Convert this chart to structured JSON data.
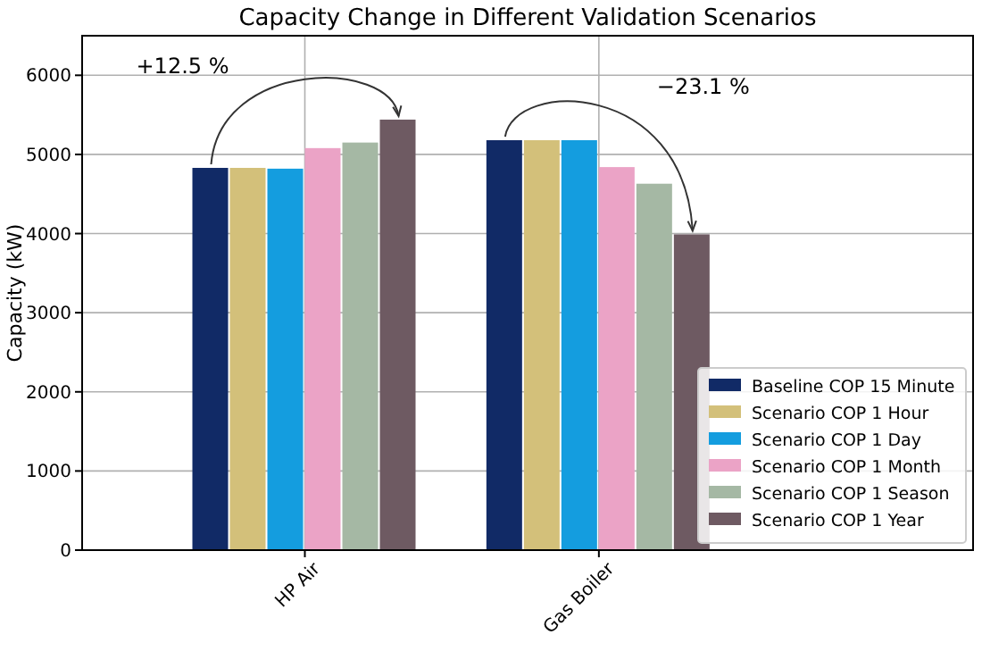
{
  "chart_data": {
    "type": "bar",
    "title": "Capacity Change in Different Validation Scenarios",
    "ylabel": "Capacity (kW)",
    "categories": [
      "HP Air",
      "Gas Boiler"
    ],
    "series": [
      {
        "name": "Baseline COP 15 Minute",
        "color": "#112a66",
        "values": [
          4830,
          5180
        ]
      },
      {
        "name": "Scenario COP 1 Hour",
        "color": "#d3c07a",
        "values": [
          4830,
          5180
        ]
      },
      {
        "name": "Scenario COP 1 Day",
        "color": "#149ddf",
        "values": [
          4820,
          5180
        ]
      },
      {
        "name": "Scenario COP 1 Month",
        "color": "#eba3c6",
        "values": [
          5080,
          4840
        ]
      },
      {
        "name": "Scenario COP 1 Season",
        "color": "#a5b8a4",
        "values": [
          5150,
          4630
        ]
      },
      {
        "name": "Scenario COP 1 Year",
        "color": "#6e5a62",
        "values": [
          5440,
          3990
        ]
      }
    ],
    "annotations": [
      "+12.5 %",
      "−23.1 %"
    ],
    "ylim": [
      0,
      6500
    ],
    "yticks": [
      0,
      1000,
      2000,
      3000,
      4000,
      5000,
      6000
    ],
    "grid": true,
    "legend": "bottom right"
  }
}
